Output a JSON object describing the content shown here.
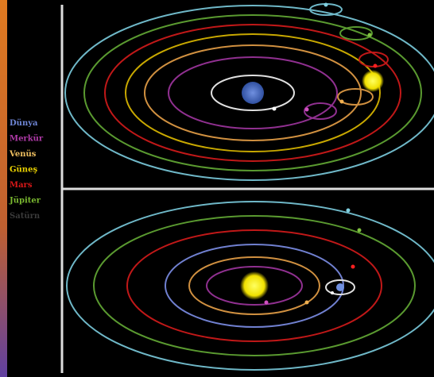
{
  "legend": [
    {
      "label": "Dünya",
      "color": "#6f86d6"
    },
    {
      "label": "Merkür",
      "color": "#b03aa8"
    },
    {
      "label": "Venüs",
      "color": "#f0c060"
    },
    {
      "label": "Güneş",
      "color": "#e8d000"
    },
    {
      "label": "Mars",
      "color": "#d81818"
    },
    {
      "label": "Jüpiter",
      "color": "#7ab830"
    },
    {
      "label": "Satürn",
      "color": "#3a3a3a"
    }
  ]
}
